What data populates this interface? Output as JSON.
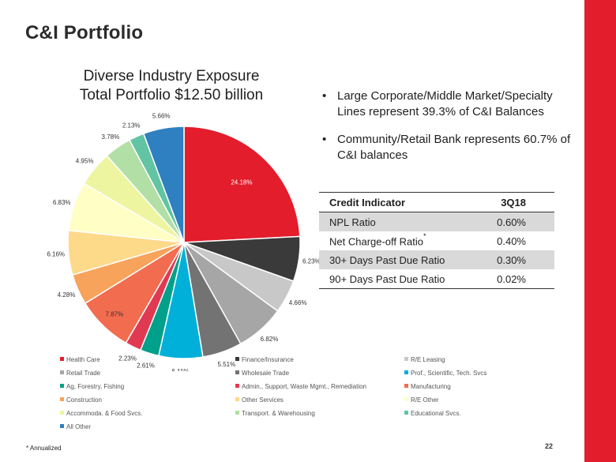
{
  "page": {
    "title": "C&I Portfolio",
    "footnote": "* Annualized",
    "page_number": "22"
  },
  "bullets": [
    "Large Corporate/Middle Market/Specialty Lines represent 39.3% of C&I Balances",
    "Community/Retail Bank represents 60.7% of C&I balances"
  ],
  "table": {
    "headers": [
      "Credit Indicator",
      "3Q18"
    ],
    "rows": [
      {
        "label": "NPL Ratio",
        "value": "0.60%",
        "star": ""
      },
      {
        "label": "Net Charge-off Ratio",
        "value": "0.40%",
        "star": "*"
      },
      {
        "label": "30+ Days Past Due Ratio",
        "value": "0.30%",
        "star": ""
      },
      {
        "label": "90+ Days Past Due Ratio",
        "value": "0.02%",
        "star": ""
      }
    ]
  },
  "chart_data": {
    "type": "pie",
    "title_line1": "Diverse Industry Exposure",
    "title_line2": "Total Portfolio $12.50 billion",
    "legend_position": "bottom",
    "slices": [
      {
        "name": "Health Care",
        "value": 24.18,
        "label": "24.18%",
        "color": "#e31d2b"
      },
      {
        "name": "Finance/Insurance",
        "value": 6.23,
        "label": "6.23%",
        "color": "#3a3a3a"
      },
      {
        "name": "R/E Leasing",
        "value": 4.66,
        "label": "4.66%",
        "color": "#c8c8c8"
      },
      {
        "name": "Retail Trade",
        "value": 6.82,
        "label": "6.82%",
        "color": "#a6a6a6"
      },
      {
        "name": "Wholesale Trade",
        "value": 5.51,
        "label": "5.51%",
        "color": "#737373"
      },
      {
        "name": "Prof., Scientific, Tech. Svcs",
        "value": 6.11,
        "label": "6.11%",
        "color": "#00b0d8"
      },
      {
        "name": "Ag, Forestry, Fishing",
        "value": 2.61,
        "label": "2.61%",
        "color": "#00a08a"
      },
      {
        "name": "Admin., Support, Waste Mgmt., Remediation",
        "value": 2.23,
        "label": "2.23%",
        "color": "#e03a52"
      },
      {
        "name": "Manufacturing",
        "value": 7.87,
        "label": "7.87%",
        "color": "#f26c4f"
      },
      {
        "name": "Construction",
        "value": 4.28,
        "label": "4.28%",
        "color": "#f7a35c"
      },
      {
        "name": "Other Services",
        "value": 6.16,
        "label": "6.16%",
        "color": "#fdd98a"
      },
      {
        "name": "R/E Other",
        "value": 6.83,
        "label": "6.83%",
        "color": "#ffffc5"
      },
      {
        "name": "Accommoda. & Food Svcs.",
        "value": 4.95,
        "label": "4.95%",
        "color": "#eef5a1"
      },
      {
        "name": "Transport. & Warehousing",
        "value": 3.78,
        "label": "3.78%",
        "color": "#b2dfa6"
      },
      {
        "name": "Educational Svcs.",
        "value": 2.13,
        "label": "2.13%",
        "color": "#62c4a2"
      },
      {
        "name": "All Other",
        "value": 5.66,
        "label": "5.66%",
        "color": "#2e80c0"
      }
    ]
  }
}
